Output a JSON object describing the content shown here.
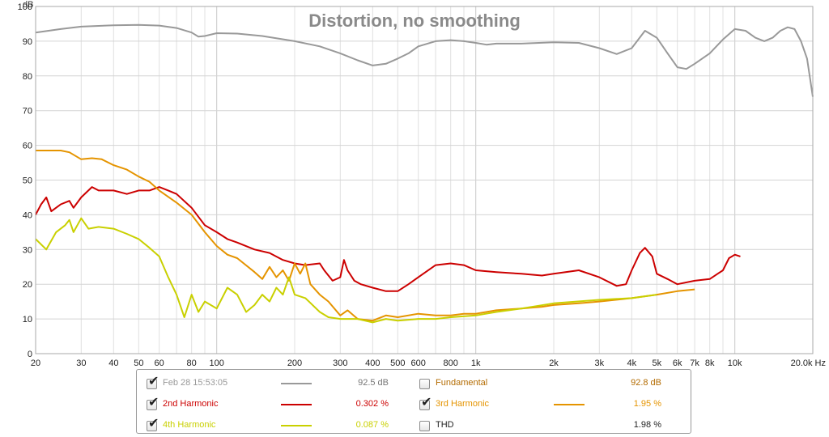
{
  "chart_data": {
    "type": "line",
    "title": "Distortion, no smoothing",
    "ylabel": "dB",
    "xunit": "Hz",
    "xscale": "log",
    "xlim": [
      20,
      20000
    ],
    "ylim": [
      0,
      100
    ],
    "grid": true,
    "yticks": [
      0,
      10,
      20,
      30,
      40,
      50,
      60,
      70,
      80,
      90,
      100
    ],
    "xticks": [
      {
        "v": 20,
        "label": "20"
      },
      {
        "v": 30,
        "label": "30"
      },
      {
        "v": 40,
        "label": "40"
      },
      {
        "v": 50,
        "label": "50"
      },
      {
        "v": 60,
        "label": "60"
      },
      {
        "v": 80,
        "label": "80"
      },
      {
        "v": 100,
        "label": "100"
      },
      {
        "v": 200,
        "label": "200"
      },
      {
        "v": 300,
        "label": "300"
      },
      {
        "v": 400,
        "label": "400"
      },
      {
        "v": 500,
        "label": "500"
      },
      {
        "v": 600,
        "label": "600"
      },
      {
        "v": 800,
        "label": "800"
      },
      {
        "v": 1000,
        "label": "1k"
      },
      {
        "v": 2000,
        "label": "2k"
      },
      {
        "v": 3000,
        "label": "3k"
      },
      {
        "v": 4000,
        "label": "4k"
      },
      {
        "v": 5000,
        "label": "5k"
      },
      {
        "v": 6000,
        "label": "6k"
      },
      {
        "v": 7000,
        "label": "7k"
      },
      {
        "v": 8000,
        "label": "8k"
      },
      {
        "v": 10000,
        "label": "10k"
      },
      {
        "v": 20000,
        "label": "20.0k Hz"
      }
    ],
    "series": [
      {
        "name": "Feb 28 15:53:05",
        "color": "#999999",
        "checked": true,
        "value": "92.5 dB",
        "points": [
          [
            20,
            92.5
          ],
          [
            25,
            93.5
          ],
          [
            30,
            94.2
          ],
          [
            40,
            94.6
          ],
          [
            50,
            94.7
          ],
          [
            60,
            94.5
          ],
          [
            70,
            93.8
          ],
          [
            80,
            92.5
          ],
          [
            85,
            91.3
          ],
          [
            90,
            91.5
          ],
          [
            100,
            92.3
          ],
          [
            120,
            92.2
          ],
          [
            150,
            91.5
          ],
          [
            200,
            90
          ],
          [
            250,
            88.5
          ],
          [
            300,
            86.5
          ],
          [
            350,
            84.5
          ],
          [
            400,
            83
          ],
          [
            450,
            83.5
          ],
          [
            500,
            85
          ],
          [
            550,
            86.5
          ],
          [
            600,
            88.5
          ],
          [
            700,
            90
          ],
          [
            800,
            90.3
          ],
          [
            900,
            90
          ],
          [
            1000,
            89.5
          ],
          [
            1100,
            89
          ],
          [
            1200,
            89.3
          ],
          [
            1500,
            89.3
          ],
          [
            2000,
            89.7
          ],
          [
            2500,
            89.5
          ],
          [
            3000,
            88
          ],
          [
            3500,
            86.3
          ],
          [
            4000,
            88
          ],
          [
            4500,
            93
          ],
          [
            5000,
            91
          ],
          [
            5500,
            86.5
          ],
          [
            6000,
            82.5
          ],
          [
            6500,
            82
          ],
          [
            7000,
            83.5
          ],
          [
            8000,
            86.5
          ],
          [
            9000,
            90.5
          ],
          [
            10000,
            93.5
          ],
          [
            11000,
            93
          ],
          [
            12000,
            91
          ],
          [
            13000,
            90
          ],
          [
            14000,
            91
          ],
          [
            15000,
            93
          ],
          [
            16000,
            94
          ],
          [
            17000,
            93.5
          ],
          [
            18000,
            90
          ],
          [
            19000,
            85
          ],
          [
            20000,
            74
          ]
        ]
      },
      {
        "name": "2nd Harmonic",
        "color": "#cc0000",
        "checked": true,
        "value": "0.302 %",
        "points": [
          [
            20,
            40
          ],
          [
            21,
            43
          ],
          [
            22,
            45
          ],
          [
            23,
            41
          ],
          [
            25,
            43
          ],
          [
            27,
            44
          ],
          [
            28,
            42
          ],
          [
            30,
            45
          ],
          [
            33,
            48
          ],
          [
            35,
            47
          ],
          [
            40,
            47
          ],
          [
            45,
            46
          ],
          [
            50,
            47
          ],
          [
            55,
            47
          ],
          [
            60,
            48
          ],
          [
            65,
            47
          ],
          [
            70,
            46
          ],
          [
            80,
            42
          ],
          [
            90,
            37
          ],
          [
            100,
            35
          ],
          [
            110,
            33
          ],
          [
            120,
            32
          ],
          [
            140,
            30
          ],
          [
            160,
            29
          ],
          [
            180,
            27
          ],
          [
            200,
            26
          ],
          [
            220,
            25.5
          ],
          [
            250,
            26
          ],
          [
            260,
            24
          ],
          [
            280,
            21
          ],
          [
            300,
            22
          ],
          [
            310,
            27
          ],
          [
            320,
            24
          ],
          [
            340,
            21
          ],
          [
            360,
            20
          ],
          [
            400,
            19
          ],
          [
            450,
            18
          ],
          [
            500,
            18
          ],
          [
            550,
            20
          ],
          [
            600,
            22
          ],
          [
            700,
            25.5
          ],
          [
            800,
            26
          ],
          [
            900,
            25.5
          ],
          [
            1000,
            24
          ],
          [
            1200,
            23.5
          ],
          [
            1500,
            23
          ],
          [
            1800,
            22.5
          ],
          [
            2000,
            23
          ],
          [
            2500,
            24
          ],
          [
            3000,
            22
          ],
          [
            3500,
            19.5
          ],
          [
            3800,
            20
          ],
          [
            4000,
            24
          ],
          [
            4300,
            29
          ],
          [
            4500,
            30.5
          ],
          [
            4800,
            28
          ],
          [
            5000,
            23
          ],
          [
            5500,
            21.5
          ],
          [
            6000,
            20
          ],
          [
            7000,
            21
          ],
          [
            8000,
            21.5
          ],
          [
            9000,
            24
          ],
          [
            9500,
            27.5
          ],
          [
            10000,
            28.5
          ],
          [
            10500,
            28
          ]
        ]
      },
      {
        "name": "3rd Harmonic",
        "color": "#e59400",
        "checked": true,
        "value": "1.95 %",
        "points": [
          [
            20,
            58.5
          ],
          [
            25,
            58.5
          ],
          [
            27,
            58
          ],
          [
            30,
            56
          ],
          [
            33,
            56.3
          ],
          [
            36,
            56
          ],
          [
            40,
            54.3
          ],
          [
            45,
            53
          ],
          [
            50,
            51
          ],
          [
            55,
            49.5
          ],
          [
            60,
            47
          ],
          [
            70,
            43.5
          ],
          [
            80,
            40
          ],
          [
            90,
            35
          ],
          [
            100,
            31
          ],
          [
            110,
            28.5
          ],
          [
            120,
            27.5
          ],
          [
            140,
            23.5
          ],
          [
            150,
            21.5
          ],
          [
            160,
            25
          ],
          [
            170,
            22
          ],
          [
            180,
            24
          ],
          [
            190,
            21
          ],
          [
            200,
            26
          ],
          [
            210,
            23
          ],
          [
            220,
            26
          ],
          [
            230,
            20
          ],
          [
            250,
            17
          ],
          [
            270,
            15
          ],
          [
            300,
            11
          ],
          [
            320,
            12.5
          ],
          [
            350,
            10
          ],
          [
            400,
            9.5
          ],
          [
            450,
            11
          ],
          [
            500,
            10.5
          ],
          [
            600,
            11.5
          ],
          [
            700,
            11
          ],
          [
            800,
            11
          ],
          [
            900,
            11.5
          ],
          [
            1000,
            11.5
          ],
          [
            1200,
            12.5
          ],
          [
            1500,
            13
          ],
          [
            1800,
            13.5
          ],
          [
            2000,
            14
          ],
          [
            2500,
            14.5
          ],
          [
            3000,
            15
          ],
          [
            4000,
            16
          ],
          [
            5000,
            17
          ],
          [
            6000,
            18
          ],
          [
            7000,
            18.5
          ]
        ]
      },
      {
        "name": "4th Harmonic",
        "color": "#c9d000",
        "checked": true,
        "value": "0.087 %",
        "points": [
          [
            20,
            33
          ],
          [
            22,
            30
          ],
          [
            24,
            35
          ],
          [
            26,
            37
          ],
          [
            27,
            38.5
          ],
          [
            28,
            35
          ],
          [
            30,
            39
          ],
          [
            32,
            36
          ],
          [
            35,
            36.5
          ],
          [
            40,
            36
          ],
          [
            45,
            34.5
          ],
          [
            50,
            33
          ],
          [
            55,
            30.5
          ],
          [
            60,
            28
          ],
          [
            65,
            22
          ],
          [
            70,
            17
          ],
          [
            75,
            10.5
          ],
          [
            80,
            17
          ],
          [
            85,
            12
          ],
          [
            90,
            15
          ],
          [
            100,
            13
          ],
          [
            110,
            19
          ],
          [
            120,
            17
          ],
          [
            130,
            12
          ],
          [
            140,
            14
          ],
          [
            150,
            17
          ],
          [
            160,
            15
          ],
          [
            170,
            19
          ],
          [
            180,
            17
          ],
          [
            190,
            22
          ],
          [
            200,
            17
          ],
          [
            220,
            16
          ],
          [
            250,
            12
          ],
          [
            270,
            10.5
          ],
          [
            300,
            10
          ],
          [
            350,
            10
          ],
          [
            400,
            9
          ],
          [
            450,
            10
          ],
          [
            500,
            9.5
          ],
          [
            600,
            10
          ],
          [
            700,
            10
          ],
          [
            800,
            10.5
          ],
          [
            1000,
            11
          ],
          [
            1200,
            12
          ],
          [
            1500,
            13
          ],
          [
            2000,
            14.5
          ],
          [
            3000,
            15.5
          ],
          [
            4000,
            16
          ],
          [
            5000,
            17
          ]
        ]
      },
      {
        "name": "Fundamental",
        "color": "#b36b00",
        "checked": false,
        "value": "92.8 dB",
        "points": []
      },
      {
        "name": "THD",
        "color": "#333333",
        "checked": false,
        "value": "1.98 %",
        "points": []
      }
    ]
  }
}
